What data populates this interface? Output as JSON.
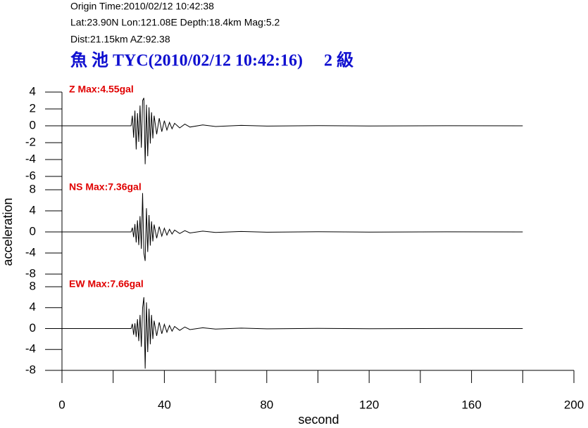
{
  "header": {
    "lines": [
      "Origin Time:2010/02/12 10:42:38",
      "Lat:23.90N  Lon:121.08E  Depth:18.4km  Mag:5.2",
      "Dist:21.15km  AZ:92.38"
    ],
    "title": "魚 池 TYC(2010/02/12 10:42:16)     2 級"
  },
  "chart_data": [
    {
      "type": "line",
      "title": "Z Max:4.55gal",
      "color": "#000000",
      "x": [
        0,
        27,
        27.5,
        28,
        28.5,
        29,
        29.5,
        30,
        30.5,
        31,
        31.5,
        32,
        32.5,
        33,
        33.5,
        34,
        34.5,
        35,
        35.5,
        36,
        37,
        38,
        39,
        40,
        41,
        42,
        43,
        44,
        46,
        48,
        50,
        55,
        60,
        70,
        80,
        100,
        120,
        150,
        180
      ],
      "values": [
        0,
        0,
        1.2,
        -1.4,
        1.8,
        -2.8,
        1.5,
        -1.9,
        2.4,
        -2.6,
        3.0,
        3.3,
        -4.55,
        2.5,
        -3.6,
        2.2,
        -2.1,
        1.6,
        -1.5,
        1.2,
        -1.0,
        0.9,
        -0.7,
        0.6,
        -0.5,
        0.4,
        -0.35,
        0.3,
        -0.25,
        0.2,
        -0.15,
        0.1,
        -0.08,
        0.05,
        -0.03,
        0.02,
        -0.02,
        0.01,
        0
      ],
      "xlim": [
        0,
        200
      ],
      "ylim": [
        -6,
        4
      ],
      "yticks": [
        4,
        2,
        0,
        -2,
        -4,
        -6
      ]
    },
    {
      "type": "line",
      "title": "NS Max:7.36gal",
      "color": "#000000",
      "ylabel": "acceleration",
      "x": [
        0,
        27,
        27.5,
        28,
        28.5,
        29,
        29.5,
        30,
        30.5,
        31,
        31.5,
        32,
        32.5,
        33,
        33.5,
        34,
        34.5,
        35,
        35.5,
        36,
        37,
        38,
        39,
        40,
        41,
        42,
        43,
        44,
        46,
        48,
        50,
        55,
        60,
        70,
        80,
        100,
        120,
        150,
        180
      ],
      "values": [
        0,
        0,
        0.8,
        -1.0,
        1.5,
        -2.0,
        2.2,
        -2.5,
        3.0,
        -3.2,
        7.36,
        -4.0,
        -5.5,
        4.5,
        -3.8,
        3.2,
        -2.6,
        2.0,
        -1.8,
        1.4,
        -1.2,
        1.0,
        -0.8,
        0.7,
        -0.6,
        0.5,
        -0.4,
        0.35,
        -0.3,
        0.25,
        -0.2,
        0.15,
        -0.1,
        0.08,
        -0.05,
        0.04,
        -0.03,
        0.02,
        0
      ],
      "xlim": [
        0,
        200
      ],
      "ylim": [
        -8,
        8
      ],
      "yticks": [
        8,
        4,
        0,
        -4,
        -8
      ]
    },
    {
      "type": "line",
      "title": "EW Max:7.66gal",
      "color": "#000000",
      "xlabel": "second",
      "x": [
        0,
        27,
        27.5,
        28,
        28.5,
        29,
        29.5,
        30,
        30.5,
        31,
        31.5,
        32,
        32.5,
        33,
        33.5,
        34,
        34.5,
        35,
        35.5,
        36,
        37,
        38,
        39,
        40,
        41,
        42,
        43,
        44,
        46,
        48,
        50,
        55,
        60,
        70,
        80,
        100,
        120,
        150,
        180
      ],
      "values": [
        0,
        0,
        0.9,
        -1.2,
        1.0,
        -1.6,
        1.8,
        -2.4,
        2.6,
        -3.5,
        4.0,
        6.0,
        -7.66,
        5.0,
        -4.5,
        3.8,
        -3.0,
        2.6,
        -2.0,
        1.5,
        -1.4,
        1.2,
        -1.0,
        0.8,
        -0.7,
        0.6,
        -0.5,
        0.4,
        -0.35,
        0.3,
        -0.2,
        0.15,
        -0.1,
        0.08,
        -0.05,
        0.04,
        -0.03,
        0.02,
        0
      ],
      "xlim": [
        0,
        200
      ],
      "ylim": [
        -8,
        8
      ],
      "yticks": [
        8,
        4,
        0,
        -4,
        -8
      ],
      "xticks": [
        0,
        40,
        80,
        120,
        160,
        200
      ],
      "xminor_ticks": [
        20,
        60,
        100,
        140,
        180
      ]
    }
  ]
}
